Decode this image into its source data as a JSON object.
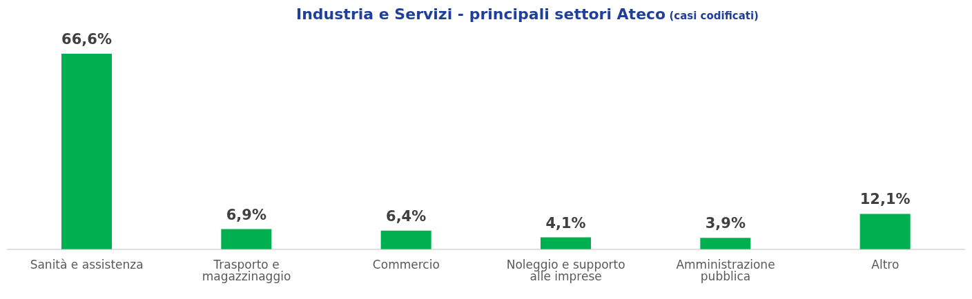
{
  "chart_data": {
    "type": "bar",
    "title": "Industria e Servizi - principali settori Ateco",
    "subtitle": "(casi codificati)",
    "categories": [
      "Sanità e assistenza",
      "Trasporto e magazzinaggio",
      "Commercio",
      "Noleggio e supporto alle imprese",
      "Amministrazione pubblica",
      "Altro"
    ],
    "values": [
      66.6,
      6.9,
      6.4,
      4.1,
      3.9,
      12.1
    ],
    "value_labels": [
      "66,6%",
      "6,9%",
      "6,4%",
      "4,1%",
      "3,9%",
      "12,1%"
    ],
    "color": "#00b050",
    "grid": false
  }
}
